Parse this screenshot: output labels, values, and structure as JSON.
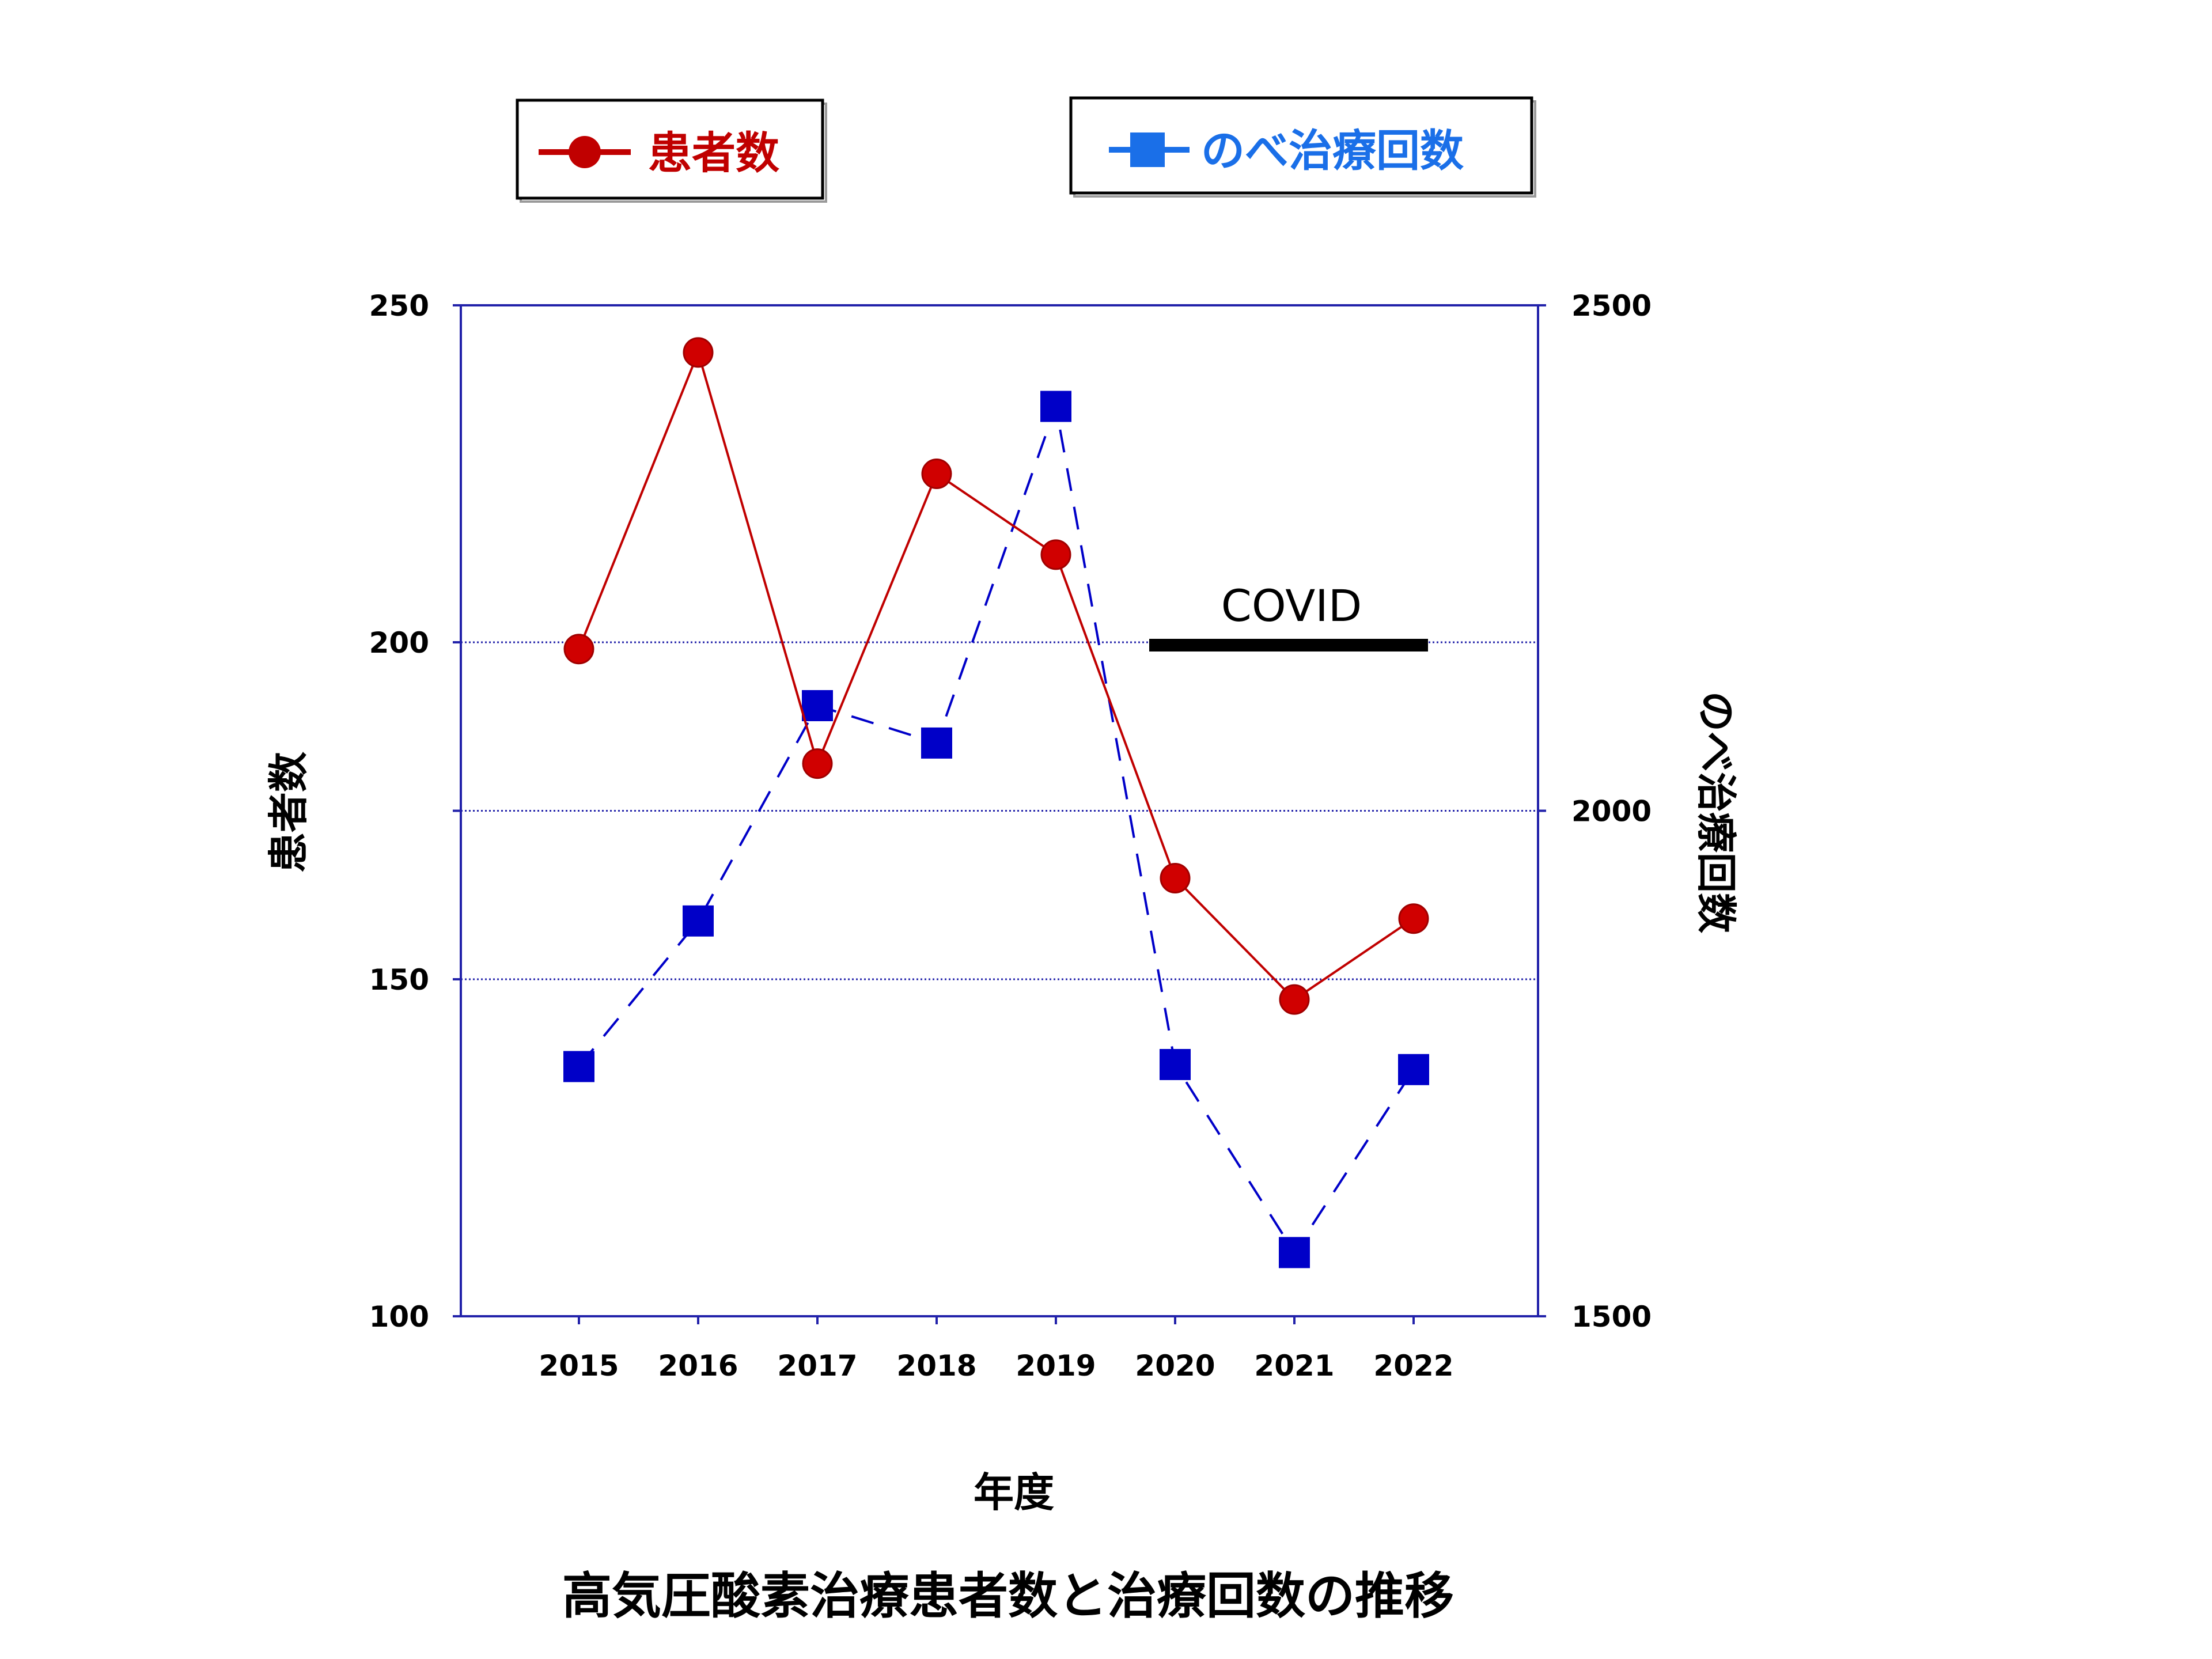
{
  "chart_data": {
    "type": "line",
    "title": "高気圧酸素治療患者数と治療回数の推移",
    "xlabel": "年度",
    "ylabel_left": "患者数",
    "ylabel_right": "のべ治療回数",
    "categories": [
      "2015",
      "2016",
      "2017",
      "2018",
      "2019",
      "2020",
      "2021",
      "2022"
    ],
    "y_left": {
      "min": 100,
      "max": 250,
      "ticks": [
        100,
        150,
        200,
        250
      ]
    },
    "y_right": {
      "min": 1500,
      "max": 2500,
      "ticks": [
        1500,
        2000,
        2500
      ]
    },
    "grid": {
      "horizontal": true,
      "values_left": [
        150,
        175,
        200
      ]
    },
    "series": [
      {
        "name": "患者数",
        "axis": "left",
        "color": "#c00000",
        "marker": "circle",
        "line": "solid",
        "values": [
          199,
          243,
          182,
          225,
          213,
          165,
          147,
          159
        ]
      },
      {
        "name": "のべ治療回数",
        "axis": "right",
        "color": "#0000c8",
        "marker": "square",
        "line": "dashed",
        "values": [
          1747,
          1891,
          2104,
          2067,
          2400,
          1749,
          1563,
          1744
        ]
      }
    ],
    "annotations": [
      {
        "text": "COVID",
        "from": "2020",
        "to": "2022",
        "y_left": 200
      }
    ],
    "legend": [
      {
        "label": "患者数",
        "color": "#c00000",
        "text_color": "#c00000",
        "marker": "circle",
        "placement": "top-left"
      },
      {
        "label": "のべ治療回数",
        "color": "#0000c8",
        "text_color": "#1a6fe8",
        "marker": "square",
        "placement": "top-right"
      }
    ]
  }
}
